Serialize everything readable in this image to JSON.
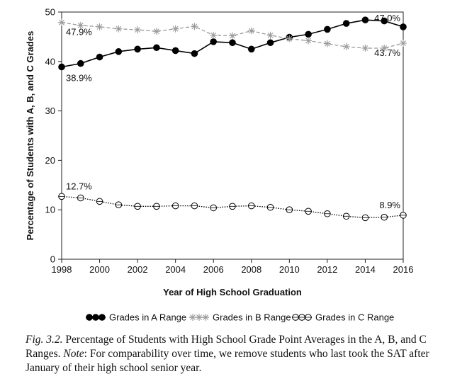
{
  "chart_data": {
    "type": "line",
    "xlabel": "Year of High School Graduation",
    "ylabel": "Percentage of Students with A, B, and C Grades",
    "xlim": [
      1998,
      2016
    ],
    "ylim": [
      0,
      50
    ],
    "x_ticks": [
      1998,
      2000,
      2002,
      2004,
      2006,
      2008,
      2010,
      2012,
      2014,
      2016
    ],
    "y_ticks": [
      0,
      10,
      20,
      30,
      40,
      50
    ],
    "grid": false,
    "legend_position": "bottom",
    "x": [
      1998,
      1999,
      2000,
      2001,
      2002,
      2003,
      2004,
      2005,
      2006,
      2007,
      2008,
      2009,
      2010,
      2011,
      2012,
      2013,
      2014,
      2015,
      2016
    ],
    "series": [
      {
        "name": "Grades in A Range",
        "marker": "filled-circle",
        "line": "solid",
        "color": "#000000",
        "values": [
          38.9,
          39.6,
          40.9,
          42.0,
          42.5,
          42.8,
          42.2,
          41.6,
          44.0,
          43.8,
          42.5,
          43.8,
          44.9,
          45.5,
          46.5,
          47.7,
          48.4,
          48.2,
          47.0
        ]
      },
      {
        "name": "Grades in B Range",
        "marker": "asterisk",
        "line": "dashed",
        "color": "#9a9a9a",
        "values": [
          47.9,
          47.3,
          47.0,
          46.6,
          46.4,
          46.1,
          46.6,
          47.1,
          45.3,
          45.2,
          46.2,
          45.3,
          44.6,
          44.2,
          43.6,
          43.0,
          42.7,
          42.7,
          43.7
        ]
      },
      {
        "name": "Grades in C Range",
        "marker": "open-circle",
        "line": "dotted",
        "color": "#000000",
        "values": [
          12.7,
          12.4,
          11.7,
          11.0,
          10.7,
          10.7,
          10.8,
          10.8,
          10.4,
          10.7,
          10.8,
          10.5,
          10.0,
          9.7,
          9.2,
          8.7,
          8.4,
          8.5,
          8.9
        ]
      }
    ],
    "annotations": [
      {
        "text": "47.9%",
        "series": 1,
        "index": 0
      },
      {
        "text": "38.9%",
        "series": 0,
        "index": 0
      },
      {
        "text": "12.7%",
        "series": 2,
        "index": 0
      },
      {
        "text": "47.0%",
        "series": 0,
        "index": 18
      },
      {
        "text": "43.7%",
        "series": 1,
        "index": 18
      },
      {
        "text": "8.9%",
        "series": 2,
        "index": 18
      }
    ]
  },
  "caption": {
    "fig_label": "Fig. 3.2.",
    "text_1": " Percentage of Students with High School Grade Point Averages in the A, B, and C Ranges. ",
    "note_label": "Note",
    "text_2": ": For comparability over time, we remove students who last took the SAT after January of their high school senior year."
  }
}
